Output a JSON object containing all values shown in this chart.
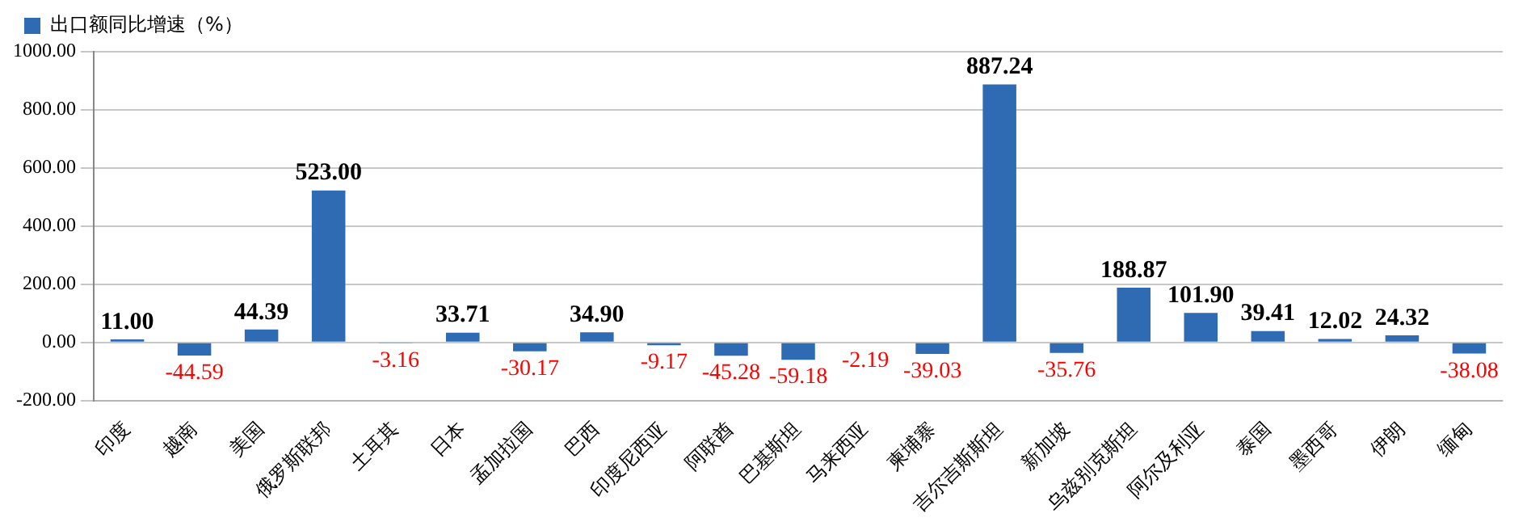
{
  "chart_data": {
    "type": "bar",
    "categories": [
      "印度",
      "越南",
      "美国",
      "俄罗斯联邦",
      "土耳其",
      "日本",
      "孟加拉国",
      "巴西",
      "印度尼西亚",
      "阿联酋",
      "巴基斯坦",
      "马来西亚",
      "柬埔寨",
      "吉尔吉斯斯坦",
      "新加坡",
      "乌兹别克斯坦",
      "阿尔及利亚",
      "泰国",
      "墨西哥",
      "伊朗",
      "缅甸"
    ],
    "series": [
      {
        "name": "出口额同比增速（%）",
        "color": "#2f6bb3",
        "values": [
          11.0,
          -44.59,
          44.39,
          523.0,
          -3.16,
          33.71,
          -30.17,
          34.9,
          -9.17,
          -45.28,
          -59.18,
          -2.19,
          -39.03,
          887.24,
          -35.76,
          188.87,
          101.9,
          39.41,
          12.02,
          24.32,
          -38.08
        ],
        "value_labels": [
          "11.00",
          "-44.59",
          "44.39",
          "523.00",
          "-3.16",
          "33.71",
          "-30.17",
          "34.90",
          "-9.17",
          "-45.28",
          "-59.18",
          "-2.19",
          "-39.03",
          "887.24",
          "-35.76",
          "188.87",
          "101.90",
          "39.41",
          "12.02",
          "24.32",
          "-38.08"
        ]
      }
    ],
    "ylim": [
      -200,
      1000
    ],
    "yticks": [
      {
        "value": -200,
        "label": "-200.00"
      },
      {
        "value": 0,
        "label": "0.00"
      },
      {
        "value": 200,
        "label": "200.00"
      },
      {
        "value": 400,
        "label": "400.00"
      },
      {
        "value": 600,
        "label": "600.00"
      },
      {
        "value": 800,
        "label": "800.00"
      },
      {
        "value": 1000,
        "label": "1000.00"
      }
    ],
    "grid": "y",
    "legend": "top left"
  }
}
